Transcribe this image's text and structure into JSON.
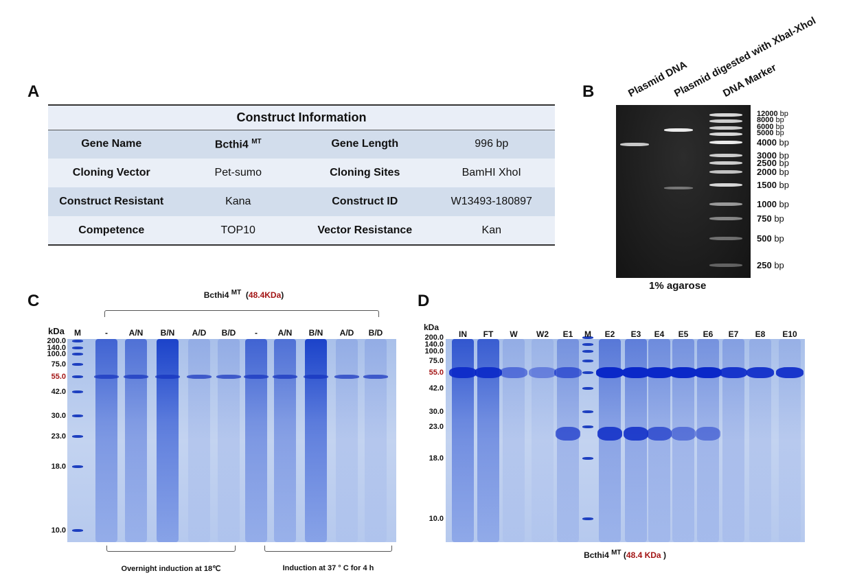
{
  "panels": {
    "a": "A",
    "b": "B",
    "c": "C",
    "d": "D"
  },
  "table": {
    "title": "Construct Information",
    "rows": [
      [
        {
          "t": "Gene Name"
        },
        {
          "t": "Bcthi4",
          "sup": "MT"
        },
        {
          "t": "Gene Length"
        },
        {
          "t": "996 bp"
        }
      ],
      [
        {
          "t": "Cloning Vector"
        },
        {
          "t": "Pet-sumo"
        },
        {
          "t": "Cloning Sites"
        },
        {
          "t": "BamHI XhoI"
        }
      ],
      [
        {
          "t": "Construct Resistant"
        },
        {
          "t": "Kana"
        },
        {
          "t": "Construct ID"
        },
        {
          "t": "W13493-180897"
        }
      ],
      [
        {
          "t": "Competence"
        },
        {
          "t": "TOP10"
        },
        {
          "t": "Vector Resistance"
        },
        {
          "t": "Kan"
        }
      ]
    ]
  },
  "gel_b": {
    "lanes": [
      "Plasmid DNA",
      "Plasmid digested with Xbal-Xhol",
      "DNA Marker"
    ],
    "ladder": [
      {
        "n": "12000",
        "u": "bp"
      },
      {
        "n": "8000",
        "u": "bp"
      },
      {
        "n": "6000",
        "u": "bp"
      },
      {
        "n": "5000",
        "u": "bp"
      },
      {
        "n": "4000",
        "u": "bp"
      },
      {
        "n": "3000",
        "u": "bp"
      },
      {
        "n": "2500",
        "u": "bp"
      },
      {
        "n": "2000",
        "u": "bp"
      },
      {
        "n": "1500",
        "u": "bp"
      },
      {
        "n": "1000",
        "u": "bp"
      },
      {
        "n": "750",
        "u": "bp"
      },
      {
        "n": "500",
        "u": "bp"
      },
      {
        "n": "250",
        "u": "bp"
      }
    ],
    "caption": "1% agarose"
  },
  "gel_c": {
    "title": "Bcthi4",
    "title_sup": "MT",
    "title_open": "(",
    "title_kda": "48.4KDa",
    "title_close": ")",
    "unit": "kDa",
    "lanes": [
      "M",
      "-",
      "A/N",
      "B/N",
      "A/D",
      "B/D",
      "-",
      "A/N",
      "B/N",
      "A/D",
      "B/D"
    ],
    "markers": [
      "200.0",
      "140.0",
      "100.0",
      "75.0",
      "55.0",
      "42.0",
      "30.0",
      "23.0",
      "18.0",
      "10.0"
    ],
    "groups": [
      "Overnight induction at 18℃",
      "Induction at 37 ° C for 4 h"
    ]
  },
  "gel_d": {
    "unit": "kDa",
    "lanes": [
      "IN",
      "FT",
      "W",
      "W2",
      "E1",
      "M",
      "E2",
      "E3",
      "E4",
      "E5",
      "E6",
      "E7",
      "E8",
      "E10"
    ],
    "markers": [
      "200.0",
      "140.0",
      "100.0",
      "75.0",
      "55.0",
      "42.0",
      "30.0",
      "23.0",
      "18.0",
      "10.0"
    ],
    "caption": "Bcthi4",
    "caption_sup": "MT",
    "caption_open": "(",
    "caption_kda": "48.4 KDa",
    "caption_close": ")"
  },
  "colors": {
    "highlight": "#a31515",
    "table_dark": "#d2ddec",
    "table_light": "#eaeff7"
  }
}
